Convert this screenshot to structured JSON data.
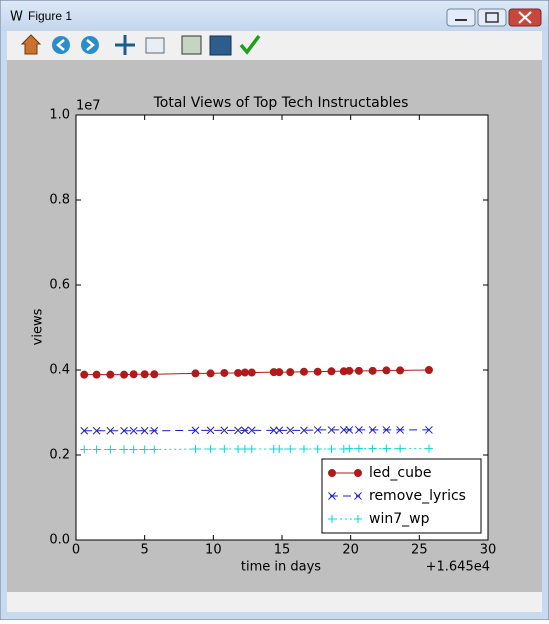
{
  "window": {
    "title": "Figure 1"
  },
  "chart_data": {
    "type": "line",
    "title": "Total Views of Top Tech Instructables",
    "xlabel": "time in days",
    "ylabel": "views",
    "x_offset_label": "+1.645e4",
    "y_offset_label": "1e7",
    "x": [
      0.6,
      1.5,
      2.5,
      3.5,
      4.2,
      5.0,
      5.7,
      8.7,
      9.8,
      10.8,
      11.8,
      12.3,
      12.8,
      14.4,
      14.8,
      15.6,
      16.6,
      17.6,
      18.6,
      19.5,
      19.9,
      20.6,
      21.6,
      22.6,
      23.6,
      25.7
    ],
    "series": [
      {
        "name": "led_cube",
        "color": "#b01a1a",
        "linestyle": "solid",
        "marker": "circle",
        "values": [
          0.389,
          0.389,
          0.389,
          0.389,
          0.39,
          0.39,
          0.39,
          0.392,
          0.392,
          0.393,
          0.393,
          0.394,
          0.394,
          0.395,
          0.395,
          0.395,
          0.396,
          0.396,
          0.397,
          0.397,
          0.398,
          0.398,
          0.398,
          0.399,
          0.399,
          0.4
        ]
      },
      {
        "name": "remove_lyrics",
        "color": "#1f1fbf",
        "linestyle": "dashed",
        "marker": "x",
        "values": [
          0.257,
          0.257,
          0.257,
          0.257,
          0.257,
          0.257,
          0.257,
          0.258,
          0.258,
          0.258,
          0.258,
          0.258,
          0.258,
          0.258,
          0.258,
          0.258,
          0.258,
          0.259,
          0.259,
          0.259,
          0.259,
          0.259,
          0.259,
          0.259,
          0.259,
          0.259
        ]
      },
      {
        "name": "win7_wp",
        "color": "#00d8d8",
        "linestyle": "dotted",
        "marker": "plus",
        "values": [
          0.213,
          0.213,
          0.213,
          0.213,
          0.213,
          0.213,
          0.213,
          0.214,
          0.214,
          0.214,
          0.214,
          0.214,
          0.214,
          0.214,
          0.214,
          0.214,
          0.214,
          0.214,
          0.214,
          0.214,
          0.215,
          0.215,
          0.215,
          0.215,
          0.215,
          0.215
        ]
      }
    ],
    "xlim": [
      0,
      30
    ],
    "xticks": [
      0,
      5,
      10,
      15,
      20,
      25,
      30
    ],
    "ylim": [
      0,
      1
    ],
    "yticks": [
      {
        "value": 0,
        "label": "0.0"
      },
      0.2,
      0.4,
      0.6,
      0.8,
      {
        "value": 1,
        "label": "1.0"
      }
    ],
    "grid": false,
    "legend_loc": "lower right"
  }
}
